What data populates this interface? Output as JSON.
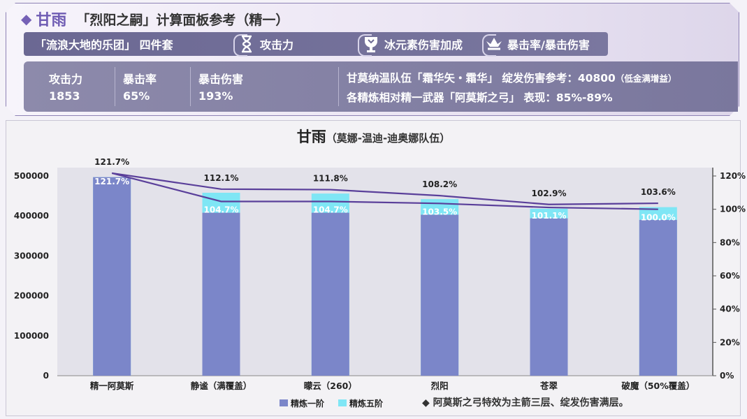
{
  "header": {
    "character": "甘雨",
    "title": "「烈阳之嗣」计算面板参考（精一）",
    "tags": [
      {
        "label": "「流浪大地的乐团」 四件套",
        "icon": ""
      },
      {
        "label": "攻击力",
        "icon": "hourglass-icon"
      },
      {
        "label": "冰元素伤害加成",
        "icon": "goblet-icon"
      },
      {
        "label": "暴击率/暴击伤害",
        "icon": "crown-icon"
      }
    ],
    "stats": [
      {
        "label": "攻击力",
        "value": "1853"
      },
      {
        "label": "暴击率",
        "value": "65%"
      },
      {
        "label": "暴击伤害",
        "value": "193%"
      }
    ],
    "info_line1": "甘莫纳温队伍「霜华矢・霜华」 绽发伤害参考：40800",
    "info_line1_note": "（低金满增益）",
    "info_line2": "各精炼相对精一武器「阿莫斯之弓」 表现：85%-89%"
  },
  "chart_data": {
    "type": "bar",
    "title": "甘雨",
    "subtitle": "（莫娜-温迪-迪奥娜队伍）",
    "categories": [
      "精一阿莫斯",
      "静谧（满覆盖）",
      "曚云（260）",
      "烈阳",
      "苍翠",
      "破魔（50%覆盖）"
    ],
    "series": [
      {
        "name": "精炼一阶",
        "values": [
          497000,
          408000,
          408000,
          403000,
          394000,
          390000
        ],
        "color": "#7b86c9"
      },
      {
        "name": "精炼五阶",
        "values": [
          497000,
          458000,
          456000,
          442000,
          418000,
          422000
        ],
        "color": "#7fe6f5"
      }
    ],
    "line_series": [
      {
        "name": "精炼五阶",
        "values": [
          121.7,
          112.1,
          111.8,
          108.2,
          102.9,
          103.6
        ],
        "labels": [
          "121.7%",
          "112.1%",
          "111.8%",
          "108.2%",
          "102.9%",
          "103.6%"
        ]
      },
      {
        "name": "精炼一阶",
        "values": [
          121.7,
          104.7,
          104.7,
          103.5,
          101.1,
          100.0
        ],
        "labels": [
          "121.7%",
          "104.7%",
          "104.7%",
          "103.5%",
          "101.1%",
          "100.0%"
        ]
      }
    ],
    "ylim": [
      0,
      500000
    ],
    "yticks": [
      "0",
      "100000",
      "200000",
      "300000",
      "400000",
      "500000"
    ],
    "y2lim": [
      0,
      120
    ],
    "y2ticks": [
      "0%",
      "20%",
      "40%",
      "60%",
      "80%",
      "100%",
      "120%"
    ],
    "legend_position": "bottom-center",
    "colors": {
      "bar1": "#7b86c9",
      "bar5": "#7fe6f5",
      "line": "#5a3f9a",
      "plot_bg": "#e3e2ea"
    }
  },
  "note": "◆ 阿莫斯之弓特效为主箭三层、绽发伤害满层。"
}
